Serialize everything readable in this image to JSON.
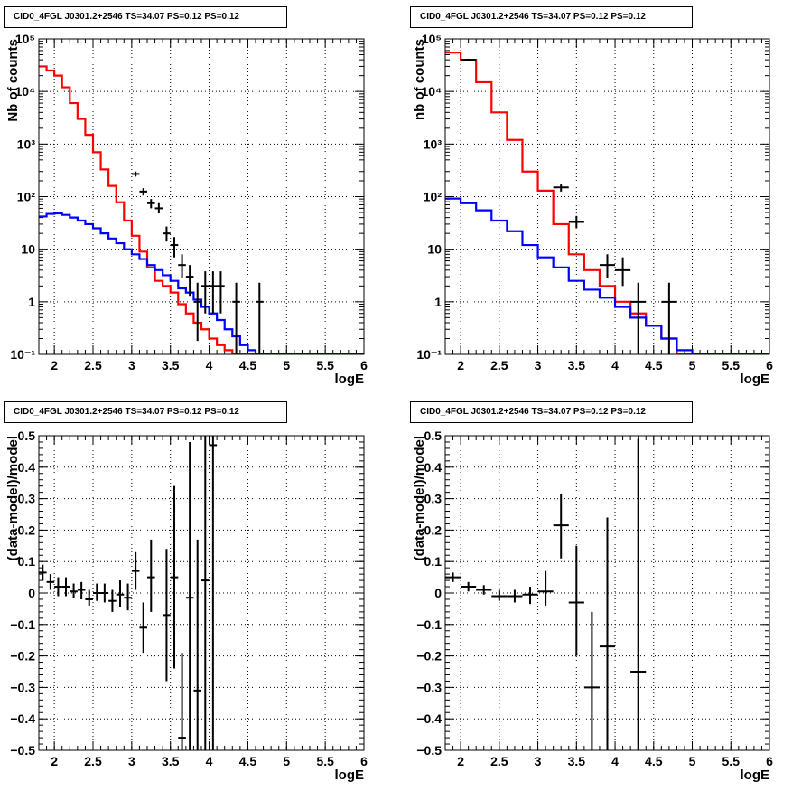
{
  "panels": [
    {
      "title": "CID0_4FGL J0301.2+2546 TS=34.07 PS=0.12 PS=0.12",
      "chart_data": {
        "type": "line",
        "xlabel": "logE",
        "ylabel": "Nb of counts",
        "xlim": [
          1.8,
          6.0
        ],
        "ylim": [
          0.1,
          100000
        ],
        "yscale": "log",
        "grid": true,
        "xticks": [
          2,
          2.5,
          3,
          3.5,
          4,
          4.5,
          5,
          5.5,
          6
        ],
        "yticks": [
          0.1,
          1,
          10,
          100,
          1000,
          10000,
          100000
        ],
        "ytick_labels": [
          "10⁻¹",
          "1",
          "10",
          "10²",
          "10³",
          "10⁴",
          "10⁵"
        ],
        "bin_edges": [
          1.8,
          1.9,
          2.0,
          2.1,
          2.2,
          2.3,
          2.4,
          2.5,
          2.6,
          2.7,
          2.8,
          2.9,
          3.0,
          3.1,
          3.2,
          3.3,
          3.4,
          3.5,
          3.6,
          3.7,
          3.8,
          3.9,
          4.0,
          4.1,
          4.2,
          4.3,
          4.4,
          4.5,
          4.6,
          4.7,
          4.8,
          4.9,
          5.0,
          5.1,
          5.2,
          5.3,
          5.4,
          5.5,
          5.6,
          5.7,
          5.8,
          5.9,
          6.0
        ],
        "series": [
          {
            "color": "#ff0000",
            "style": "step",
            "values": [
              30000,
              25000,
              20000,
              12000,
              6000,
              3000,
              1500,
              700,
              330,
              160,
              78,
              35,
              18,
              9,
              4.5,
              2.5,
              2.0,
              1.5,
              0.9,
              0.6,
              0.4,
              0.3,
              0.2,
              0.15,
              0.12,
              0.1,
              0.1,
              0.1,
              0.1,
              0.1,
              0.1,
              0.1,
              0.1,
              0.1,
              0.1,
              0.1,
              0.1,
              0.1,
              0.1,
              0.1,
              0.1,
              0.1
            ]
          },
          {
            "color": "#0000ff",
            "style": "step",
            "values": [
              42,
              47,
              48,
              45,
              40,
              35,
              30,
              25,
              20,
              16,
              13,
              10,
              8,
              6.5,
              5,
              4,
              3.2,
              2.5,
              1.8,
              1.5,
              1.1,
              0.8,
              0.6,
              0.45,
              0.3,
              0.22,
              0.15,
              0.12,
              0.1,
              0.1,
              0.1,
              0.1,
              0.1,
              0.1,
              0.1,
              0.1,
              0.1,
              0.1,
              0.1,
              0.1,
              0.1,
              0.1
            ]
          },
          {
            "color": "#000000",
            "style": "errorbar",
            "points": [
              {
                "x": 3.05,
                "y": 270,
                "xerr": 0.05,
                "ylo": 240,
                "yhi": 300
              },
              {
                "x": 3.15,
                "y": 125,
                "xerr": 0.05,
                "ylo": 105,
                "yhi": 145
              },
              {
                "x": 3.25,
                "y": 75,
                "xerr": 0.05,
                "ylo": 60,
                "yhi": 90
              },
              {
                "x": 3.35,
                "y": 60,
                "xerr": 0.05,
                "ylo": 48,
                "yhi": 75
              },
              {
                "x": 3.45,
                "y": 20,
                "xerr": 0.05,
                "ylo": 14,
                "yhi": 27
              },
              {
                "x": 3.55,
                "y": 12,
                "xerr": 0.05,
                "ylo": 7,
                "yhi": 17
              },
              {
                "x": 3.65,
                "y": 5,
                "xerr": 0.05,
                "ylo": 2.8,
                "yhi": 8
              },
              {
                "x": 3.75,
                "y": 3,
                "xerr": 0.05,
                "ylo": 1.3,
                "yhi": 5
              },
              {
                "x": 3.85,
                "y": 1,
                "xerr": 0.05,
                "ylo": 0.18,
                "yhi": 2.3
              },
              {
                "x": 3.95,
                "y": 2,
                "xerr": 0.05,
                "ylo": 0.6,
                "yhi": 3.8
              },
              {
                "x": 4.05,
                "y": 2,
                "xerr": 0.05,
                "ylo": 0.6,
                "yhi": 3.8
              },
              {
                "x": 4.15,
                "y": 2,
                "xerr": 0.05,
                "ylo": 0.6,
                "yhi": 3.8
              },
              {
                "x": 4.35,
                "y": 1,
                "xerr": 0.05,
                "ylo": 0.1,
                "yhi": 2.3
              },
              {
                "x": 4.65,
                "y": 1,
                "xerr": 0.05,
                "ylo": 0.1,
                "yhi": 2.3
              }
            ]
          }
        ]
      }
    },
    {
      "title": "CID0_4FGL J0301.2+2546 TS=34.07 PS=0.12 PS=0.12",
      "chart_data": {
        "type": "line",
        "xlabel": "logE",
        "ylabel": "nb of counts",
        "xlim": [
          1.8,
          6.0
        ],
        "ylim": [
          0.1,
          100000
        ],
        "yscale": "log",
        "grid": true,
        "xticks": [
          2,
          2.5,
          3,
          3.5,
          4,
          4.5,
          5,
          5.5,
          6
        ],
        "yticks": [
          0.1,
          1,
          10,
          100,
          1000,
          10000,
          100000
        ],
        "ytick_labels": [
          "10⁻¹",
          "1",
          "10",
          "10²",
          "10³",
          "10⁴",
          "10⁵"
        ],
        "bin_edges": [
          1.8,
          2.0,
          2.2,
          2.4,
          2.6,
          2.8,
          3.0,
          3.2,
          3.4,
          3.6,
          3.8,
          4.0,
          4.2,
          4.4,
          4.6,
          4.8,
          5.0,
          5.2,
          5.4,
          5.6,
          5.8,
          6.0
        ],
        "series": [
          {
            "color": "#ff0000",
            "style": "step",
            "values": [
              55000,
              40000,
              15000,
              4000,
              1200,
              300,
              130,
              30,
              8,
              4,
              2,
              1,
              0.6,
              0.35,
              0.2,
              0.1,
              0.1,
              0.1,
              0.1,
              0.1,
              0.1
            ]
          },
          {
            "color": "#0000ff",
            "style": "step",
            "values": [
              92,
              75,
              55,
              35,
              22,
              12,
              7,
              4.5,
              2.5,
              1.7,
              1.2,
              0.8,
              0.5,
              0.35,
              0.2,
              0.12,
              0.1,
              0.1,
              0.1,
              0.1,
              0.1
            ]
          },
          {
            "color": "#000000",
            "style": "errorbar",
            "points": [
              {
                "x": 2.1,
                "y": 40000,
                "xerr": 0.1,
                "ylo": 38000,
                "yhi": 42000
              },
              {
                "x": 3.3,
                "y": 150,
                "xerr": 0.1,
                "ylo": 125,
                "yhi": 175
              },
              {
                "x": 3.5,
                "y": 33,
                "xerr": 0.1,
                "ylo": 25,
                "yhi": 43
              },
              {
                "x": 3.9,
                "y": 5,
                "xerr": 0.1,
                "ylo": 2.8,
                "yhi": 8
              },
              {
                "x": 4.1,
                "y": 4,
                "xerr": 0.1,
                "ylo": 2,
                "yhi": 7
              },
              {
                "x": 4.3,
                "y": 1,
                "xerr": 0.1,
                "ylo": 0.1,
                "yhi": 2.3
              },
              {
                "x": 4.7,
                "y": 1,
                "xerr": 0.1,
                "ylo": 0.1,
                "yhi": 2.3
              }
            ]
          }
        ]
      }
    },
    {
      "title": "CID0_4FGL J0301.2+2546 TS=34.07 PS=0.12 PS=0.12",
      "chart_data": {
        "type": "scatter",
        "xlabel": "logE",
        "ylabel": "(data-model)/model",
        "xlim": [
          1.8,
          6.0
        ],
        "ylim": [
          -0.5,
          0.5
        ],
        "yscale": "linear",
        "grid": true,
        "xticks": [
          2,
          2.5,
          3,
          3.5,
          4,
          4.5,
          5,
          5.5,
          6
        ],
        "yticks": [
          -0.5,
          -0.4,
          -0.3,
          -0.2,
          -0.1,
          0,
          0.1,
          0.2,
          0.3,
          0.4,
          0.5
        ],
        "ytick_labels": [
          "−0.5",
          "−0.4",
          "−0.3",
          "−0.2",
          "−0.1",
          "0",
          "0.1",
          "0.2",
          "0.3",
          "0.4",
          "0.5"
        ],
        "series": [
          {
            "color": "#000000",
            "style": "errorbar",
            "points": [
              {
                "x": 1.85,
                "y": 0.065,
                "xerr": 0.05,
                "ylo": 0.04,
                "yhi": 0.09
              },
              {
                "x": 1.95,
                "y": 0.035,
                "xerr": 0.05,
                "ylo": 0.01,
                "yhi": 0.06
              },
              {
                "x": 2.05,
                "y": 0.02,
                "xerr": 0.05,
                "ylo": -0.01,
                "yhi": 0.05
              },
              {
                "x": 2.15,
                "y": 0.02,
                "xerr": 0.05,
                "ylo": -0.01,
                "yhi": 0.05
              },
              {
                "x": 2.25,
                "y": 0.005,
                "xerr": 0.05,
                "ylo": -0.015,
                "yhi": 0.03
              },
              {
                "x": 2.35,
                "y": 0.01,
                "xerr": 0.05,
                "ylo": -0.02,
                "yhi": 0.035
              },
              {
                "x": 2.45,
                "y": -0.02,
                "xerr": 0.05,
                "ylo": -0.04,
                "yhi": 0.01
              },
              {
                "x": 2.55,
                "y": 0.0,
                "xerr": 0.05,
                "ylo": -0.025,
                "yhi": 0.03
              },
              {
                "x": 2.65,
                "y": 0.0,
                "xerr": 0.05,
                "ylo": -0.03,
                "yhi": 0.03
              },
              {
                "x": 2.75,
                "y": -0.025,
                "xerr": 0.05,
                "ylo": -0.06,
                "yhi": 0.01
              },
              {
                "x": 2.85,
                "y": -0.005,
                "xerr": 0.05,
                "ylo": -0.045,
                "yhi": 0.04
              },
              {
                "x": 2.95,
                "y": -0.015,
                "xerr": 0.05,
                "ylo": -0.055,
                "yhi": 0.03
              },
              {
                "x": 3.05,
                "y": 0.07,
                "xerr": 0.05,
                "ylo": 0.01,
                "yhi": 0.13
              },
              {
                "x": 3.15,
                "y": -0.11,
                "xerr": 0.05,
                "ylo": -0.19,
                "yhi": -0.03
              },
              {
                "x": 3.25,
                "y": 0.05,
                "xerr": 0.05,
                "ylo": -0.06,
                "yhi": 0.17
              },
              {
                "x": 3.45,
                "y": -0.07,
                "xerr": 0.05,
                "ylo": -0.28,
                "yhi": 0.14
              },
              {
                "x": 3.55,
                "y": 0.05,
                "xerr": 0.05,
                "ylo": -0.24,
                "yhi": 0.34
              },
              {
                "x": 3.65,
                "y": -0.46,
                "xerr": 0.05,
                "ylo": -0.5,
                "yhi": -0.19
              },
              {
                "x": 3.75,
                "y": -0.015,
                "xerr": 0.05,
                "ylo": -0.5,
                "yhi": 0.48
              },
              {
                "x": 3.85,
                "y": -0.31,
                "xerr": 0.05,
                "ylo": -0.5,
                "yhi": 0.17
              },
              {
                "x": 3.95,
                "y": 0.04,
                "xerr": 0.05,
                "ylo": -0.5,
                "yhi": 0.5
              },
              {
                "x": 4.05,
                "y": 0.47,
                "xerr": 0.05,
                "ylo": -0.5,
                "yhi": 0.5
              }
            ]
          }
        ]
      }
    },
    {
      "title": "CID0_4FGL J0301.2+2546 TS=34.07 PS=0.12 PS=0.12",
      "chart_data": {
        "type": "scatter",
        "xlabel": "logE",
        "ylabel": "(data-model)/model",
        "xlim": [
          1.8,
          6.0
        ],
        "ylim": [
          -0.5,
          0.5
        ],
        "yscale": "linear",
        "grid": true,
        "xticks": [
          2,
          2.5,
          3,
          3.5,
          4,
          4.5,
          5,
          5.5,
          6
        ],
        "yticks": [
          -0.5,
          -0.4,
          -0.3,
          -0.2,
          -0.1,
          0,
          0.1,
          0.2,
          0.3,
          0.4,
          0.5
        ],
        "ytick_labels": [
          "−0.5",
          "−0.4",
          "−0.3",
          "−0.2",
          "−0.1",
          "0",
          "0.1",
          "0.2",
          "0.3",
          "0.4",
          "0.5"
        ],
        "series": [
          {
            "color": "#000000",
            "style": "errorbar",
            "points": [
              {
                "x": 1.9,
                "y": 0.05,
                "xerr": 0.1,
                "ylo": 0.035,
                "yhi": 0.065
              },
              {
                "x": 2.1,
                "y": 0.02,
                "xerr": 0.1,
                "ylo": 0.005,
                "yhi": 0.035
              },
              {
                "x": 2.3,
                "y": 0.01,
                "xerr": 0.1,
                "ylo": -0.005,
                "yhi": 0.025
              },
              {
                "x": 2.5,
                "y": -0.01,
                "xerr": 0.1,
                "ylo": -0.025,
                "yhi": 0.01
              },
              {
                "x": 2.7,
                "y": -0.01,
                "xerr": 0.1,
                "ylo": -0.03,
                "yhi": 0.01
              },
              {
                "x": 2.9,
                "y": -0.005,
                "xerr": 0.1,
                "ylo": -0.035,
                "yhi": 0.02
              },
              {
                "x": 3.1,
                "y": 0.005,
                "xerr": 0.1,
                "ylo": -0.04,
                "yhi": 0.07
              },
              {
                "x": 3.3,
                "y": 0.215,
                "xerr": 0.1,
                "ylo": 0.11,
                "yhi": 0.315
              },
              {
                "x": 3.5,
                "y": -0.03,
                "xerr": 0.1,
                "ylo": -0.2,
                "yhi": 0.15
              },
              {
                "x": 3.7,
                "y": -0.3,
                "xerr": 0.1,
                "ylo": -0.5,
                "yhi": -0.06
              },
              {
                "x": 3.9,
                "y": -0.17,
                "xerr": 0.1,
                "ylo": -0.5,
                "yhi": 0.24
              },
              {
                "x": 4.3,
                "y": -0.25,
                "xerr": 0.1,
                "ylo": -0.5,
                "yhi": 0.49
              }
            ]
          }
        ]
      }
    }
  ]
}
